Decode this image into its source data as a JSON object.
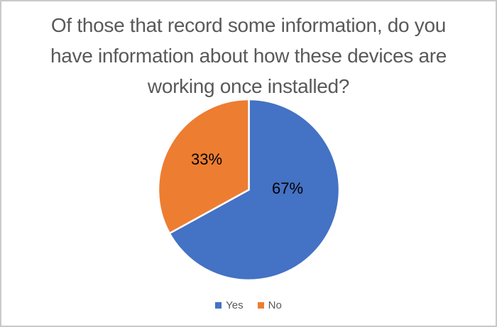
{
  "chart_data": {
    "type": "pie",
    "title": "Of those that record some information, do you have information about how these devices are working once installed?",
    "title_lines": [
      "Of those that record some information, do you",
      "have information about how these devices are",
      "working once installed?"
    ],
    "labels": [
      "Yes",
      "No"
    ],
    "values": [
      67,
      33
    ],
    "value_labels": [
      "67%",
      "33%"
    ],
    "colors": [
      "#4472C4",
      "#ED7D31"
    ],
    "start_angle_deg": 0,
    "direction": "clockwise",
    "slice_border_color": "#ffffff",
    "legend_position": "bottom",
    "title_color": "#595959",
    "legend_text_color": "#595959",
    "data_label_color": "#000000"
  }
}
